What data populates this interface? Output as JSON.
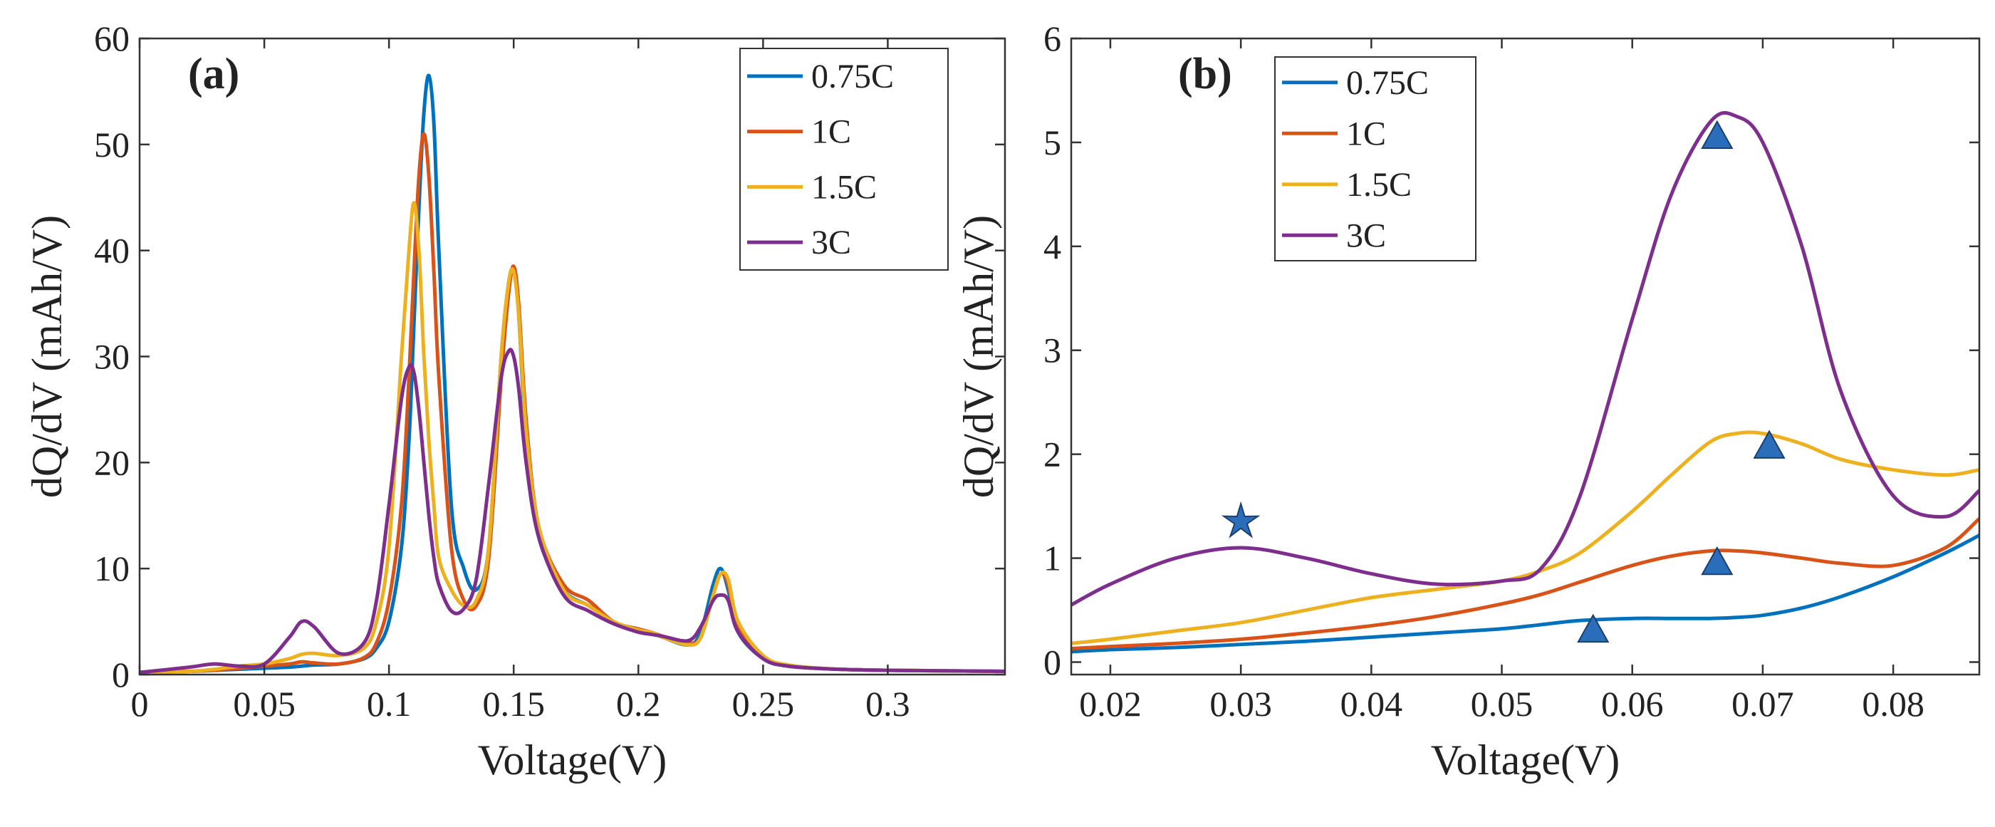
{
  "chart_data": [
    {
      "type": "line",
      "label": "(a)",
      "xlabel": "Voltage(V)",
      "ylabel": "dQ/dV (mAh/V)",
      "xlim": [
        0,
        0.347
      ],
      "ylim": [
        0,
        60
      ],
      "xticks": [
        0,
        0.05,
        0.1,
        0.15,
        0.2,
        0.25,
        0.3
      ],
      "yticks": [
        0,
        10,
        20,
        30,
        40,
        50,
        60
      ],
      "legend": "upper right",
      "x": [
        0,
        0.02,
        0.03,
        0.04,
        0.05,
        0.06,
        0.065,
        0.07,
        0.08,
        0.09,
        0.095,
        0.1,
        0.105,
        0.108,
        0.11,
        0.112,
        0.114,
        0.116,
        0.118,
        0.12,
        0.125,
        0.13,
        0.135,
        0.14,
        0.145,
        0.148,
        0.15,
        0.152,
        0.155,
        0.16,
        0.17,
        0.18,
        0.19,
        0.2,
        0.205,
        0.21,
        0.22,
        0.225,
        0.23,
        0.233,
        0.236,
        0.24,
        0.25,
        0.26,
        0.28,
        0.3,
        0.347
      ],
      "series": [
        {
          "name": "0.75C",
          "color": "#0072bd",
          "values": [
            0.2,
            0.3,
            0.4,
            0.5,
            0.6,
            0.7,
            0.8,
            0.9,
            1.0,
            1.5,
            2.5,
            5,
            12,
            22,
            33,
            44,
            53,
            56.5,
            52,
            40,
            16,
            10,
            8,
            12,
            30,
            37,
            38,
            34,
            22,
            13,
            8,
            6.5,
            5,
            4,
            4,
            3.5,
            2.8,
            4,
            8.5,
            10,
            8,
            4,
            1.5,
            0.8,
            0.5,
            0.4,
            0.3
          ]
        },
        {
          "name": "1C",
          "color": "#d95319",
          "values": [
            0.2,
            0.3,
            0.4,
            0.6,
            0.8,
            1.0,
            1.2,
            1.1,
            1.0,
            1.6,
            3,
            7,
            16,
            28,
            38,
            47,
            51,
            47,
            38,
            28,
            12,
            7,
            6.5,
            11,
            28,
            36,
            38.5,
            35,
            24,
            14,
            8.5,
            7,
            5,
            4.3,
            4,
            3.6,
            3,
            3.5,
            7.5,
            9.5,
            8.5,
            4.5,
            1.6,
            0.8,
            0.5,
            0.4,
            0.3
          ]
        },
        {
          "name": "1.5C",
          "color": "#edb120",
          "values": [
            0.2,
            0.3,
            0.5,
            0.8,
            1.0,
            1.5,
            1.9,
            2.0,
            1.8,
            2.5,
            5,
            12,
            30,
            40,
            44.5,
            40,
            30,
            22,
            16,
            11,
            8,
            6.5,
            7,
            12,
            30,
            37,
            38,
            34,
            23,
            14,
            8,
            6.5,
            5,
            4.2,
            4,
            3.5,
            2.8,
            3.5,
            7.5,
            9.5,
            9,
            5,
            1.8,
            0.9,
            0.5,
            0.4,
            0.3
          ]
        },
        {
          "name": "3C",
          "color": "#7e2f8e",
          "values": [
            0.2,
            0.7,
            1.0,
            0.8,
            1.0,
            3.5,
            5.0,
            4.5,
            2.0,
            3,
            7,
            16,
            26,
            29,
            28.5,
            25,
            20,
            15,
            11,
            8.5,
            6,
            6.2,
            9,
            18,
            28,
            30.5,
            30,
            27,
            20,
            13,
            7.5,
            6,
            4.8,
            4,
            3.8,
            3.6,
            3.2,
            4.5,
            7,
            7.5,
            7,
            4,
            1.5,
            0.8,
            0.5,
            0.4,
            0.3
          ]
        }
      ]
    },
    {
      "type": "line",
      "label": "(b)",
      "xlabel": "Voltage(V)",
      "ylabel": "dQ/dV (mAh/V)",
      "xlim": [
        0.017,
        0.0866
      ],
      "ylim": [
        -0.12,
        6
      ],
      "xticks": [
        0.02,
        0.03,
        0.04,
        0.05,
        0.06,
        0.07,
        0.08
      ],
      "yticks": [
        0,
        1,
        2,
        3,
        4,
        5,
        6
      ],
      "legend": "upper left",
      "x": [
        0.017,
        0.02,
        0.025,
        0.03,
        0.035,
        0.04,
        0.045,
        0.05,
        0.053,
        0.056,
        0.06,
        0.063,
        0.066,
        0.068,
        0.07,
        0.073,
        0.076,
        0.08,
        0.084,
        0.0866
      ],
      "series": [
        {
          "name": "0.75C",
          "color": "#0072bd",
          "values": [
            0.1,
            0.12,
            0.14,
            0.17,
            0.2,
            0.24,
            0.28,
            0.32,
            0.36,
            0.4,
            0.42,
            0.42,
            0.42,
            0.43,
            0.45,
            0.52,
            0.63,
            0.82,
            1.05,
            1.22
          ]
        },
        {
          "name": "1C",
          "color": "#d95319",
          "values": [
            0.13,
            0.15,
            0.18,
            0.22,
            0.28,
            0.35,
            0.44,
            0.56,
            0.65,
            0.77,
            0.93,
            1.02,
            1.07,
            1.07,
            1.05,
            1.0,
            0.95,
            0.93,
            1.1,
            1.38
          ]
        },
        {
          "name": "1.5C",
          "color": "#edb120",
          "values": [
            0.18,
            0.22,
            0.3,
            0.38,
            0.5,
            0.62,
            0.7,
            0.78,
            0.88,
            1.05,
            1.45,
            1.8,
            2.12,
            2.2,
            2.2,
            2.1,
            1.95,
            1.85,
            1.8,
            1.85
          ]
        },
        {
          "name": "3C",
          "color": "#7e2f8e",
          "values": [
            0.55,
            0.75,
            1.0,
            1.1,
            1.0,
            0.85,
            0.75,
            0.78,
            0.9,
            1.6,
            3.3,
            4.5,
            5.2,
            5.25,
            5.0,
            4.0,
            2.6,
            1.6,
            1.4,
            1.65
          ]
        }
      ],
      "marker_color": "#2a6ebb",
      "markers": [
        {
          "shape": "star",
          "x": 0.03,
          "y": 1.35
        },
        {
          "shape": "triangle",
          "x": 0.057,
          "y": 0.3
        },
        {
          "shape": "triangle",
          "x": 0.0665,
          "y": 0.95
        },
        {
          "shape": "triangle",
          "x": 0.0665,
          "y": 5.05
        },
        {
          "shape": "triangle",
          "x": 0.0705,
          "y": 2.07
        }
      ]
    }
  ]
}
